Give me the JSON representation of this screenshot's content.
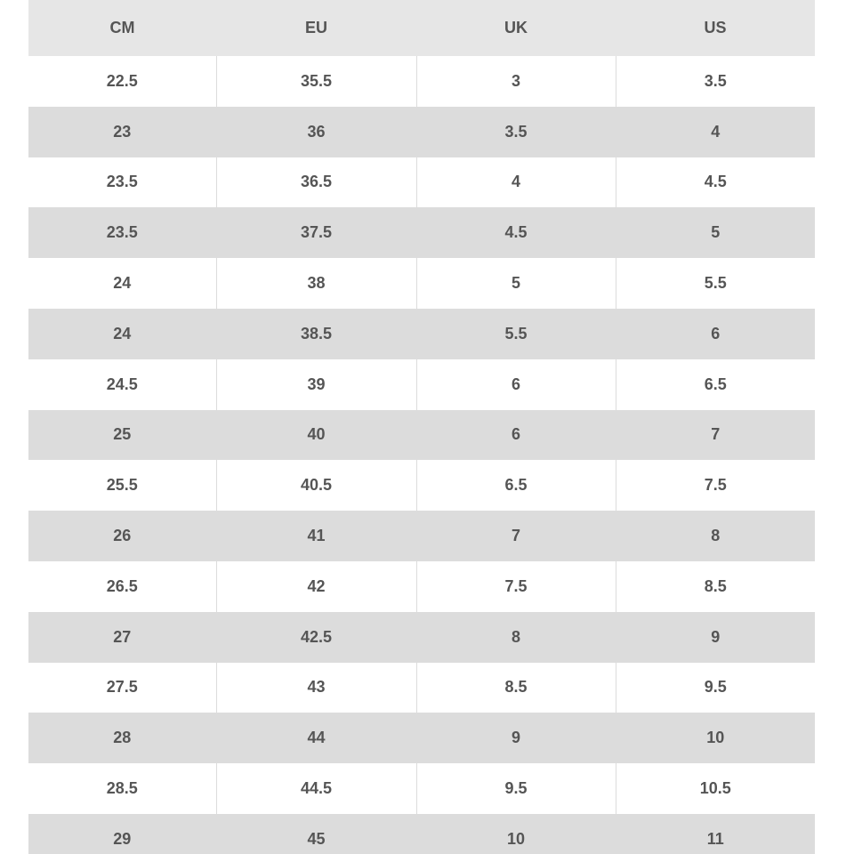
{
  "table": {
    "header": [
      "CM",
      "EU",
      "UK",
      "US"
    ],
    "rows": [
      [
        "22.5",
        "35.5",
        "3",
        "3.5"
      ],
      [
        "23",
        "36",
        "3.5",
        "4"
      ],
      [
        "23.5",
        "36.5",
        "4",
        "4.5"
      ],
      [
        "23.5",
        "37.5",
        "4.5",
        "5"
      ],
      [
        "24",
        "38",
        "5",
        "5.5"
      ],
      [
        "24",
        "38.5",
        "5.5",
        "6"
      ],
      [
        "24.5",
        "39",
        "6",
        "6.5"
      ],
      [
        "25",
        "40",
        "6",
        "7"
      ],
      [
        "25.5",
        "40.5",
        "6.5",
        "7.5"
      ],
      [
        "26",
        "41",
        "7",
        "8"
      ],
      [
        "26.5",
        "42",
        "7.5",
        "8.5"
      ],
      [
        "27",
        "42.5",
        "8",
        "9"
      ],
      [
        "27.5",
        "43",
        "8.5",
        "9.5"
      ],
      [
        "28",
        "44",
        "9",
        "10"
      ],
      [
        "28.5",
        "44.5",
        "9.5",
        "10.5"
      ],
      [
        "29",
        "45",
        "10",
        "11"
      ]
    ]
  }
}
